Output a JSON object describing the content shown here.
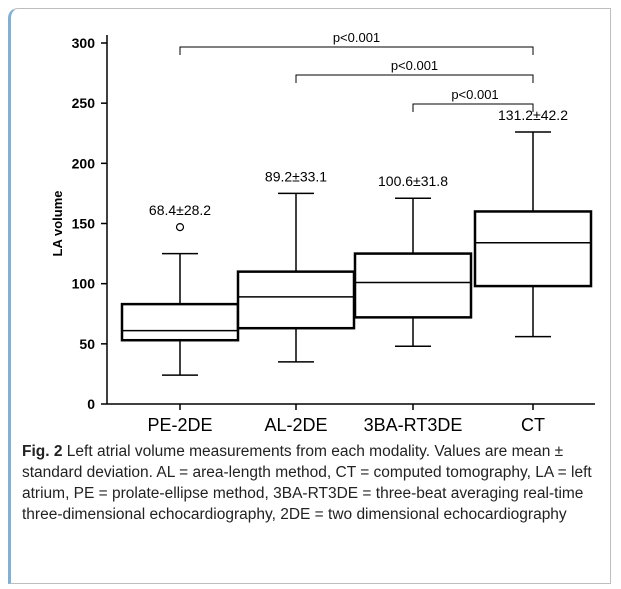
{
  "caption": {
    "label": "Fig. 2",
    "text": " Left atrial volume measurements from each modality. Values are mean ± standard deviation. AL = area-length method, CT = computed tomography, LA = left atrium, PE = prolate-ellipse method, 3BA-RT3DE = three-beat averaging real-time three-dimensional echocardiography, 2DE = two dimensional echocardiography"
  },
  "chart_data": {
    "type": "boxplot",
    "title": "",
    "xlabel": "",
    "ylabel": "LA volume",
    "ylim": [
      0,
      300
    ],
    "yticks": [
      "0",
      "50",
      "100",
      "150",
      "200",
      "250",
      "300"
    ],
    "categories": [
      "PE-2DE",
      "AL-2DE",
      "3BA-RT3DE",
      "CT"
    ],
    "boxes": [
      {
        "min": 24,
        "q1": 53,
        "median": 61,
        "q3": 83,
        "max": 125,
        "outliers": [
          147
        ],
        "annotation": "68.4±28.2"
      },
      {
        "min": 35,
        "q1": 63,
        "median": 89,
        "q3": 110,
        "max": 175,
        "outliers": [],
        "annotation": "89.2±33.1"
      },
      {
        "min": 48,
        "q1": 72,
        "median": 101,
        "q3": 125,
        "max": 171,
        "outliers": [],
        "annotation": "100.6±31.8"
      },
      {
        "min": 56,
        "q1": 98,
        "median": 134,
        "q3": 160,
        "max": 226,
        "outliers": [],
        "annotation": "131.2±42.2"
      }
    ],
    "significance": [
      {
        "from": 0,
        "to": 3,
        "label": "p<0.001"
      },
      {
        "from": 1,
        "to": 3,
        "label": "p<0.001"
      },
      {
        "from": 2,
        "to": 3,
        "label": "p<0.001"
      }
    ]
  }
}
